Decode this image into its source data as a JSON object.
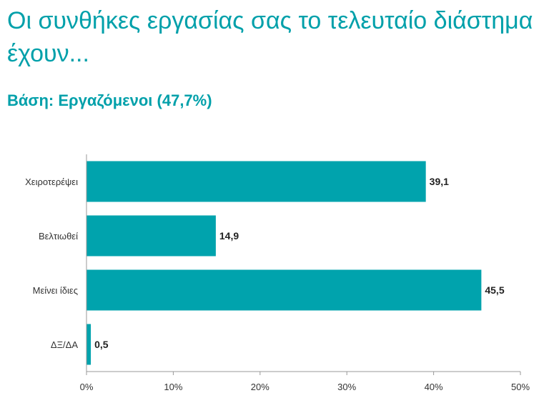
{
  "title": "Οι συνθήκες εργασίας σας το τελευταίο διάστημα έχουν...",
  "subtitle": "Βάση: Εργαζόμενοι (47,7%)",
  "chart_data": {
    "type": "bar",
    "orientation": "horizontal",
    "categories": [
      "Χειροτερέψει",
      "Βελτιωθεί",
      "Μείνει ίδιες",
      "ΔΞ/ΔΑ"
    ],
    "values": [
      39.1,
      14.9,
      45.5,
      0.5
    ],
    "value_labels": [
      "39,1",
      "14,9",
      "45,5",
      "0,5"
    ],
    "xlim": [
      0,
      50
    ],
    "xticks": [
      0,
      10,
      20,
      30,
      40,
      50
    ],
    "xtick_labels": [
      "0%",
      "10%",
      "20%",
      "30%",
      "40%",
      "50%"
    ],
    "grid": false,
    "bar_color": "#00a3ad"
  }
}
